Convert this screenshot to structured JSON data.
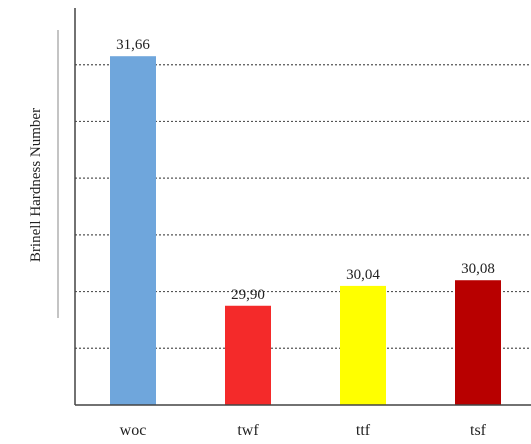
{
  "chart_data": {
    "type": "bar",
    "categories": [
      "woc",
      "twf",
      "ttf",
      "tsf"
    ],
    "values": [
      31.66,
      29.9,
      30.04,
      30.08
    ],
    "data_labels": [
      "31,66",
      "29,90",
      "30,04",
      "30,08"
    ],
    "colors": [
      "#6fa6dc",
      "#f42a2a",
      "#ffff00",
      "#b80000"
    ],
    "title": "",
    "xlabel": "",
    "ylabel": "Brinell Hardness Number",
    "ylim": [
      29.2,
      32.0
    ],
    "gridlines": [
      29.6,
      30.0,
      30.4,
      30.8,
      31.2,
      31.6
    ],
    "grid": "horizontal dotted",
    "legend": "none"
  }
}
